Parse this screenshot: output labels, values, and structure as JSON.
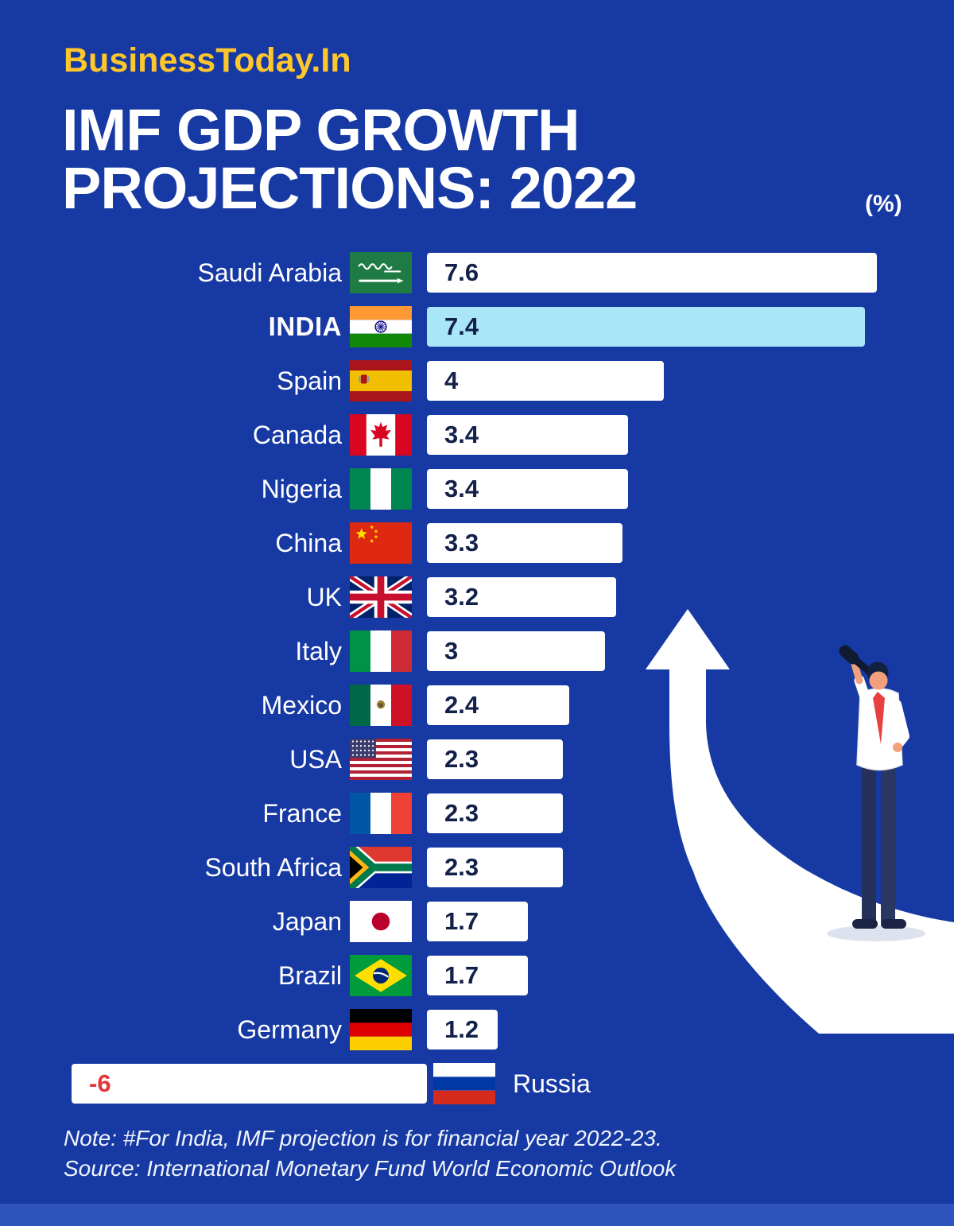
{
  "brand": {
    "logo_text": "BusinessToday.In"
  },
  "header": {
    "title_line1": "IMF GDP GROWTH",
    "title_line2": "PROJECTIONS: 2022",
    "unit_label": "(%)"
  },
  "chart_data": {
    "type": "bar",
    "orientation": "horizontal",
    "unit": "%",
    "title": "IMF GDP Growth Projections: 2022",
    "xlim": [
      -6,
      7.6
    ],
    "categories": [
      "Saudi Arabia",
      "INDIA",
      "Spain",
      "Canada",
      "Nigeria",
      "China",
      "UK",
      "Italy",
      "Mexico",
      "USA",
      "France",
      "South Africa",
      "Japan",
      "Brazil",
      "Germany",
      "Russia"
    ],
    "values": [
      7.6,
      7.4,
      4,
      3.4,
      3.4,
      3.3,
      3.2,
      3,
      2.4,
      2.3,
      2.3,
      2.3,
      1.7,
      1.7,
      1.2,
      -6
    ],
    "value_labels": [
      "7.6",
      "7.4",
      "4",
      "3.4",
      "3.4",
      "3.3",
      "3.2",
      "3",
      "2.4",
      "2.3",
      "2.3",
      "2.3",
      "1.7",
      "1.7",
      "1.2",
      "-6"
    ],
    "highlighted_category": "INDIA",
    "legend_position": "none",
    "grid": false,
    "flag_icons": [
      "flag-saudi-arabia",
      "flag-india",
      "flag-spain",
      "flag-canada",
      "flag-nigeria",
      "flag-china",
      "flag-uk",
      "flag-italy",
      "flag-mexico",
      "flag-usa",
      "flag-france",
      "flag-south-africa",
      "flag-japan",
      "flag-brazil",
      "flag-germany",
      "flag-russia"
    ],
    "flag_codes": [
      "sa",
      "in",
      "es",
      "ca",
      "ng",
      "cn",
      "gb",
      "it",
      "mx",
      "us",
      "fr",
      "za",
      "jp",
      "br",
      "de",
      "ru"
    ]
  },
  "colors": {
    "background": "#1739A3",
    "brand_yellow": "#FFC72C",
    "bar_white": "#FFFFFF",
    "india_highlight": "#A9E6F8",
    "value_text": "#12204A",
    "negative_value": "#E3353C",
    "bottom_strip": "#2E55BE"
  },
  "footer": {
    "note": "Note: #For India, IMF projection is for financial year 2022-23.",
    "source": "Source: International Monetary Fund World Economic Outlook"
  }
}
